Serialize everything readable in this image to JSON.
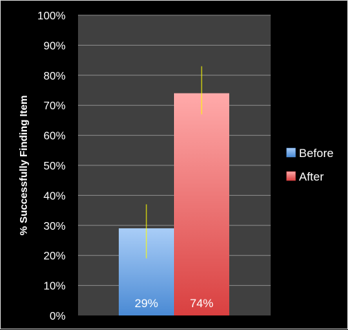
{
  "chart_data": {
    "type": "bar",
    "title": "",
    "xlabel": "",
    "ylabel": "% Successfully Finding Item",
    "ylim": [
      0,
      100
    ],
    "y_ticks": [
      "0%",
      "10%",
      "20%",
      "30%",
      "40%",
      "50%",
      "60%",
      "70%",
      "80%",
      "90%",
      "100%"
    ],
    "grid": true,
    "legend_position": "right",
    "series": [
      {
        "name": "Before",
        "value": 29,
        "label": "29%",
        "error_low": 19,
        "error_high": 37,
        "color_top": "#a9cdf7",
        "color_bottom": "#4a8ad4"
      },
      {
        "name": "After",
        "value": 74,
        "label": "74%",
        "error_low": 67,
        "error_high": 83,
        "color_top": "#ffaaaa",
        "color_bottom": "#d94040"
      }
    ],
    "colors": {
      "plot_background": "#404040",
      "gridline": "#8c8c8c",
      "error_bar": "#ffff00",
      "text": "#ffffff"
    }
  }
}
